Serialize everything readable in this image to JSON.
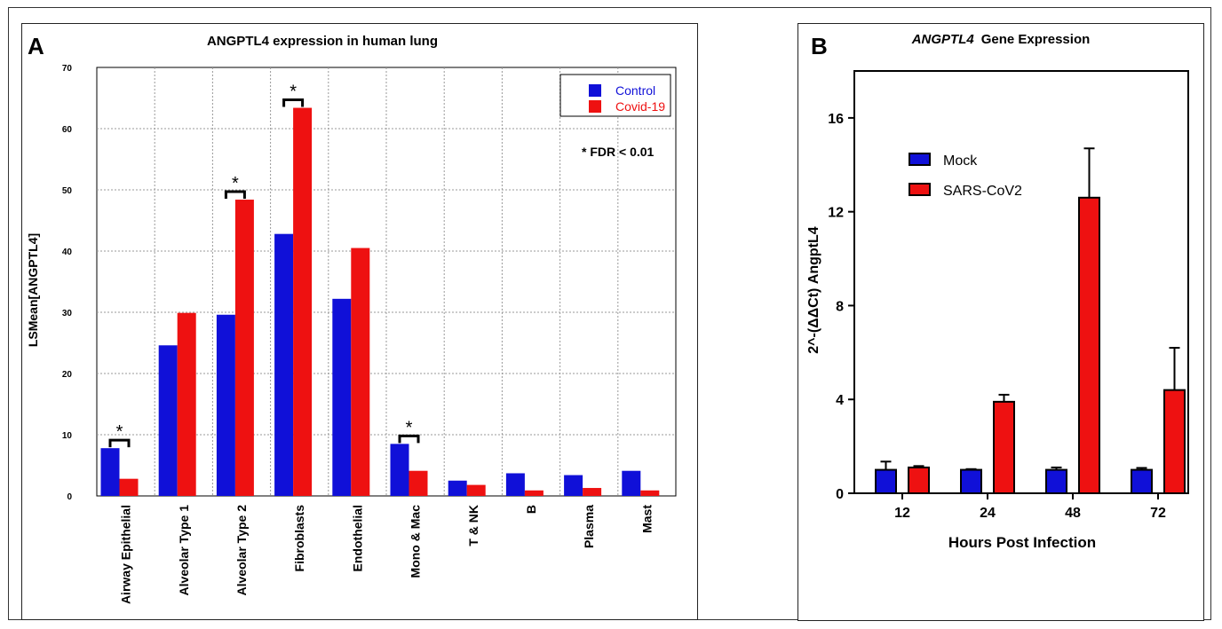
{
  "chart_data": [
    {
      "panel_label": "A",
      "type": "bar",
      "title": "ANGPTL4 expression in human lung",
      "ylabel": "LSMean[ANGPTL4]",
      "xlabel": "",
      "ylim": [
        0,
        70
      ],
      "yticks": [
        0,
        10,
        20,
        30,
        40,
        50,
        60,
        70
      ],
      "grid": true,
      "legend_position": "top-right",
      "annotation": "* FDR < 0.01",
      "categories": [
        "Airway Epithelial",
        "Alveolar Type 1",
        "Alveolar Type 2",
        "Fibroblasts",
        "Endothelial",
        "Mono & Mac",
        "T & NK",
        "B",
        "Plasma",
        "Mast"
      ],
      "series": [
        {
          "name": "Control",
          "color": "#1010d8",
          "values": [
            7.8,
            24.6,
            29.6,
            42.8,
            32.2,
            8.5,
            2.5,
            3.7,
            3.4,
            4.1
          ]
        },
        {
          "name": "Covid-19",
          "color": "#ee1111",
          "values": [
            2.8,
            29.9,
            48.4,
            63.4,
            40.5,
            4.1,
            1.8,
            0.9,
            1.3,
            0.9
          ]
        }
      ],
      "significant_categories": [
        "Airway Epithelial",
        "Alveolar Type 2",
        "Fibroblasts",
        "Mono & Mac"
      ],
      "significance_marker": "*"
    },
    {
      "panel_label": "B",
      "type": "bar",
      "title_italic": "ANGPTL4",
      "title_rest": "Gene Expression",
      "ylabel": "2^-(ΔΔCt) AngptL4",
      "xlabel": "Hours Post Infection",
      "ylim": [
        0,
        18
      ],
      "yticks": [
        0,
        4,
        8,
        12,
        16
      ],
      "grid": false,
      "legend_position": "top-left",
      "categories": [
        "12",
        "24",
        "48",
        "72"
      ],
      "series": [
        {
          "name": "Mock",
          "color": "#1010d8",
          "values": [
            1.0,
            1.0,
            1.0,
            1.0
          ],
          "errors": [
            0.35,
            0.03,
            0.1,
            0.08
          ]
        },
        {
          "name": "SARS-CoV2",
          "color": "#ee1111",
          "values": [
            1.1,
            3.9,
            12.6,
            4.4
          ],
          "errors": [
            0.06,
            0.3,
            2.1,
            1.8
          ]
        }
      ]
    }
  ]
}
